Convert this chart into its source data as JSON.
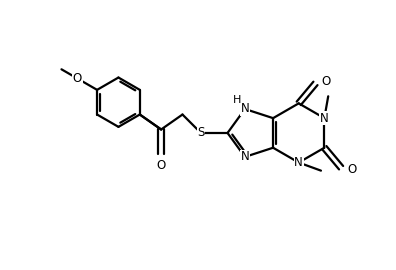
{
  "bg_color": "#ffffff",
  "line_color": "#000000",
  "line_width": 1.6,
  "font_size": 8.5,
  "fig_width": 3.96,
  "fig_height": 2.7,
  "dpi": 100,
  "xlim": [
    0,
    9.5
  ],
  "ylim": [
    0,
    6.5
  ],
  "bl": 0.72,
  "benz_r": 0.6,
  "cen6x": 7.2,
  "cen6y": 3.3
}
